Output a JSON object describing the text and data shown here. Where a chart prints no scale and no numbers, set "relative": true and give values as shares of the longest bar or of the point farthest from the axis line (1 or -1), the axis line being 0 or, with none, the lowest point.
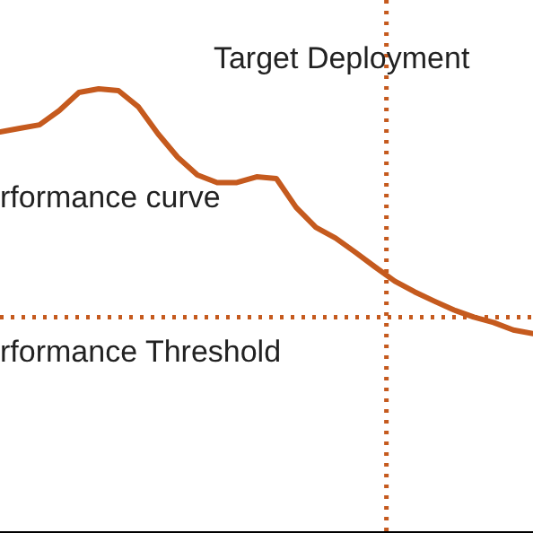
{
  "chart_data": {
    "type": "line",
    "relative": true,
    "categories": [
      null,
      null,
      null,
      null,
      null,
      null,
      null,
      null,
      null,
      null,
      null,
      null,
      null,
      null,
      null,
      null,
      null,
      null,
      null,
      null,
      null,
      null,
      null,
      null,
      null,
      null,
      null,
      null
    ],
    "series": [
      {
        "name": "rformance curve",
        "color": "#c55a1e",
        "values": [
          0.903,
          0.911,
          0.919,
          0.951,
          0.992,
          1,
          0.996,
          0.96,
          0.899,
          0.846,
          0.806,
          0.789,
          0.789,
          0.802,
          0.798,
          0.733,
          0.688,
          0.664,
          0.632,
          0.599,
          0.567,
          0.543,
          0.522,
          0.502,
          0.486,
          0.474,
          0.457,
          0.449
        ]
      }
    ],
    "annotations": [
      "Target Deployment"
    ],
    "ref_lines": [
      {
        "axis": "y",
        "value": 0.486,
        "label": "rformance Threshold",
        "color": "#c55a1e",
        "line_style": "dotted"
      }
    ],
    "grid": false,
    "legend": false,
    "marker": "none",
    "line_style": "solid"
  }
}
